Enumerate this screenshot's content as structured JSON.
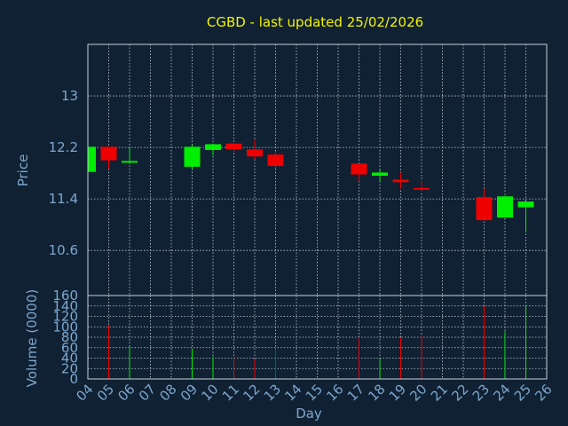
{
  "colors": {
    "background": "#0f2133",
    "title": "#f5f500",
    "axis_text": "#7ea6cc",
    "grid": "#c8d0da",
    "up": "#00ee00",
    "down": "#ee0000"
  },
  "chart_data": [
    {
      "type": "candlestick",
      "title": "CGBD - last updated 25/02/2026",
      "ylabel": "Price",
      "ylim": [
        9.9,
        13.8
      ],
      "yticks": [
        10.6,
        11.4,
        12.2,
        13
      ],
      "ytick_labels": [
        "10.6",
        "11.4",
        "12.2",
        "13"
      ],
      "grid": true,
      "candles": [
        {
          "day": "04",
          "open": 11.82,
          "high": 12.21,
          "low": 11.82,
          "close": 12.21
        },
        {
          "day": "05",
          "open": 12.21,
          "high": 12.21,
          "low": 11.87,
          "close": 12.0
        },
        {
          "day": "06",
          "open": 11.97,
          "high": 12.19,
          "low": 11.94,
          "close": 11.99
        },
        {
          "day": "09",
          "open": 11.9,
          "high": 12.24,
          "low": 11.87,
          "close": 12.21
        },
        {
          "day": "10",
          "open": 12.16,
          "high": 12.26,
          "low": 12.07,
          "close": 12.25
        },
        {
          "day": "11",
          "open": 12.26,
          "high": 12.27,
          "low": 12.12,
          "close": 12.17
        },
        {
          "day": "12",
          "open": 12.17,
          "high": 12.32,
          "low": 12.02,
          "close": 12.06
        },
        {
          "day": "13",
          "open": 12.09,
          "high": 12.12,
          "low": 11.87,
          "close": 11.91
        },
        {
          "day": "17",
          "open": 11.95,
          "high": 11.95,
          "low": 11.67,
          "close": 11.78
        },
        {
          "day": "18",
          "open": 11.76,
          "high": 11.86,
          "low": 11.67,
          "close": 11.81
        },
        {
          "day": "19",
          "open": 11.7,
          "high": 11.81,
          "low": 11.56,
          "close": 11.66
        },
        {
          "day": "20",
          "open": 11.57,
          "high": 11.68,
          "low": 11.51,
          "close": 11.55
        },
        {
          "day": "23",
          "open": 11.43,
          "high": 11.56,
          "low": 11.07,
          "close": 11.07
        },
        {
          "day": "24",
          "open": 11.11,
          "high": 11.45,
          "low": 11.11,
          "close": 11.44
        },
        {
          "day": "25",
          "open": 11.27,
          "high": 11.37,
          "low": 10.88,
          "close": 11.36
        }
      ]
    },
    {
      "type": "bar",
      "ylabel": "Volume (0000)",
      "xlabel": "Day",
      "ylim": [
        0,
        160
      ],
      "yticks": [
        0,
        20,
        40,
        60,
        80,
        100,
        120,
        140,
        160
      ],
      "ytick_labels": [
        "0",
        "20",
        "40",
        "60",
        "80",
        "100",
        "120",
        "140",
        "160"
      ],
      "categories": [
        "04",
        "05",
        "06",
        "07",
        "08",
        "09",
        "10",
        "11",
        "12",
        "13",
        "14",
        "15",
        "16",
        "17",
        "18",
        "19",
        "20",
        "21",
        "22",
        "23",
        "24",
        "25",
        "26"
      ],
      "bars": [
        {
          "day": "04",
          "value": 0,
          "direction": "up"
        },
        {
          "day": "05",
          "value": 103,
          "direction": "down"
        },
        {
          "day": "06",
          "value": 62,
          "direction": "up"
        },
        {
          "day": "09",
          "value": 58,
          "direction": "up"
        },
        {
          "day": "10",
          "value": 43,
          "direction": "up"
        },
        {
          "day": "11",
          "value": 43,
          "direction": "down"
        },
        {
          "day": "12",
          "value": 38,
          "direction": "down"
        },
        {
          "day": "13",
          "value": 58,
          "direction": "down"
        },
        {
          "day": "17",
          "value": 80,
          "direction": "down"
        },
        {
          "day": "18",
          "value": 38,
          "direction": "up"
        },
        {
          "day": "19",
          "value": 80,
          "direction": "down"
        },
        {
          "day": "20",
          "value": 85,
          "direction": "down"
        },
        {
          "day": "23",
          "value": 140,
          "direction": "down"
        },
        {
          "day": "24",
          "value": 91,
          "direction": "up"
        },
        {
          "day": "25",
          "value": 142,
          "direction": "up"
        }
      ]
    }
  ]
}
